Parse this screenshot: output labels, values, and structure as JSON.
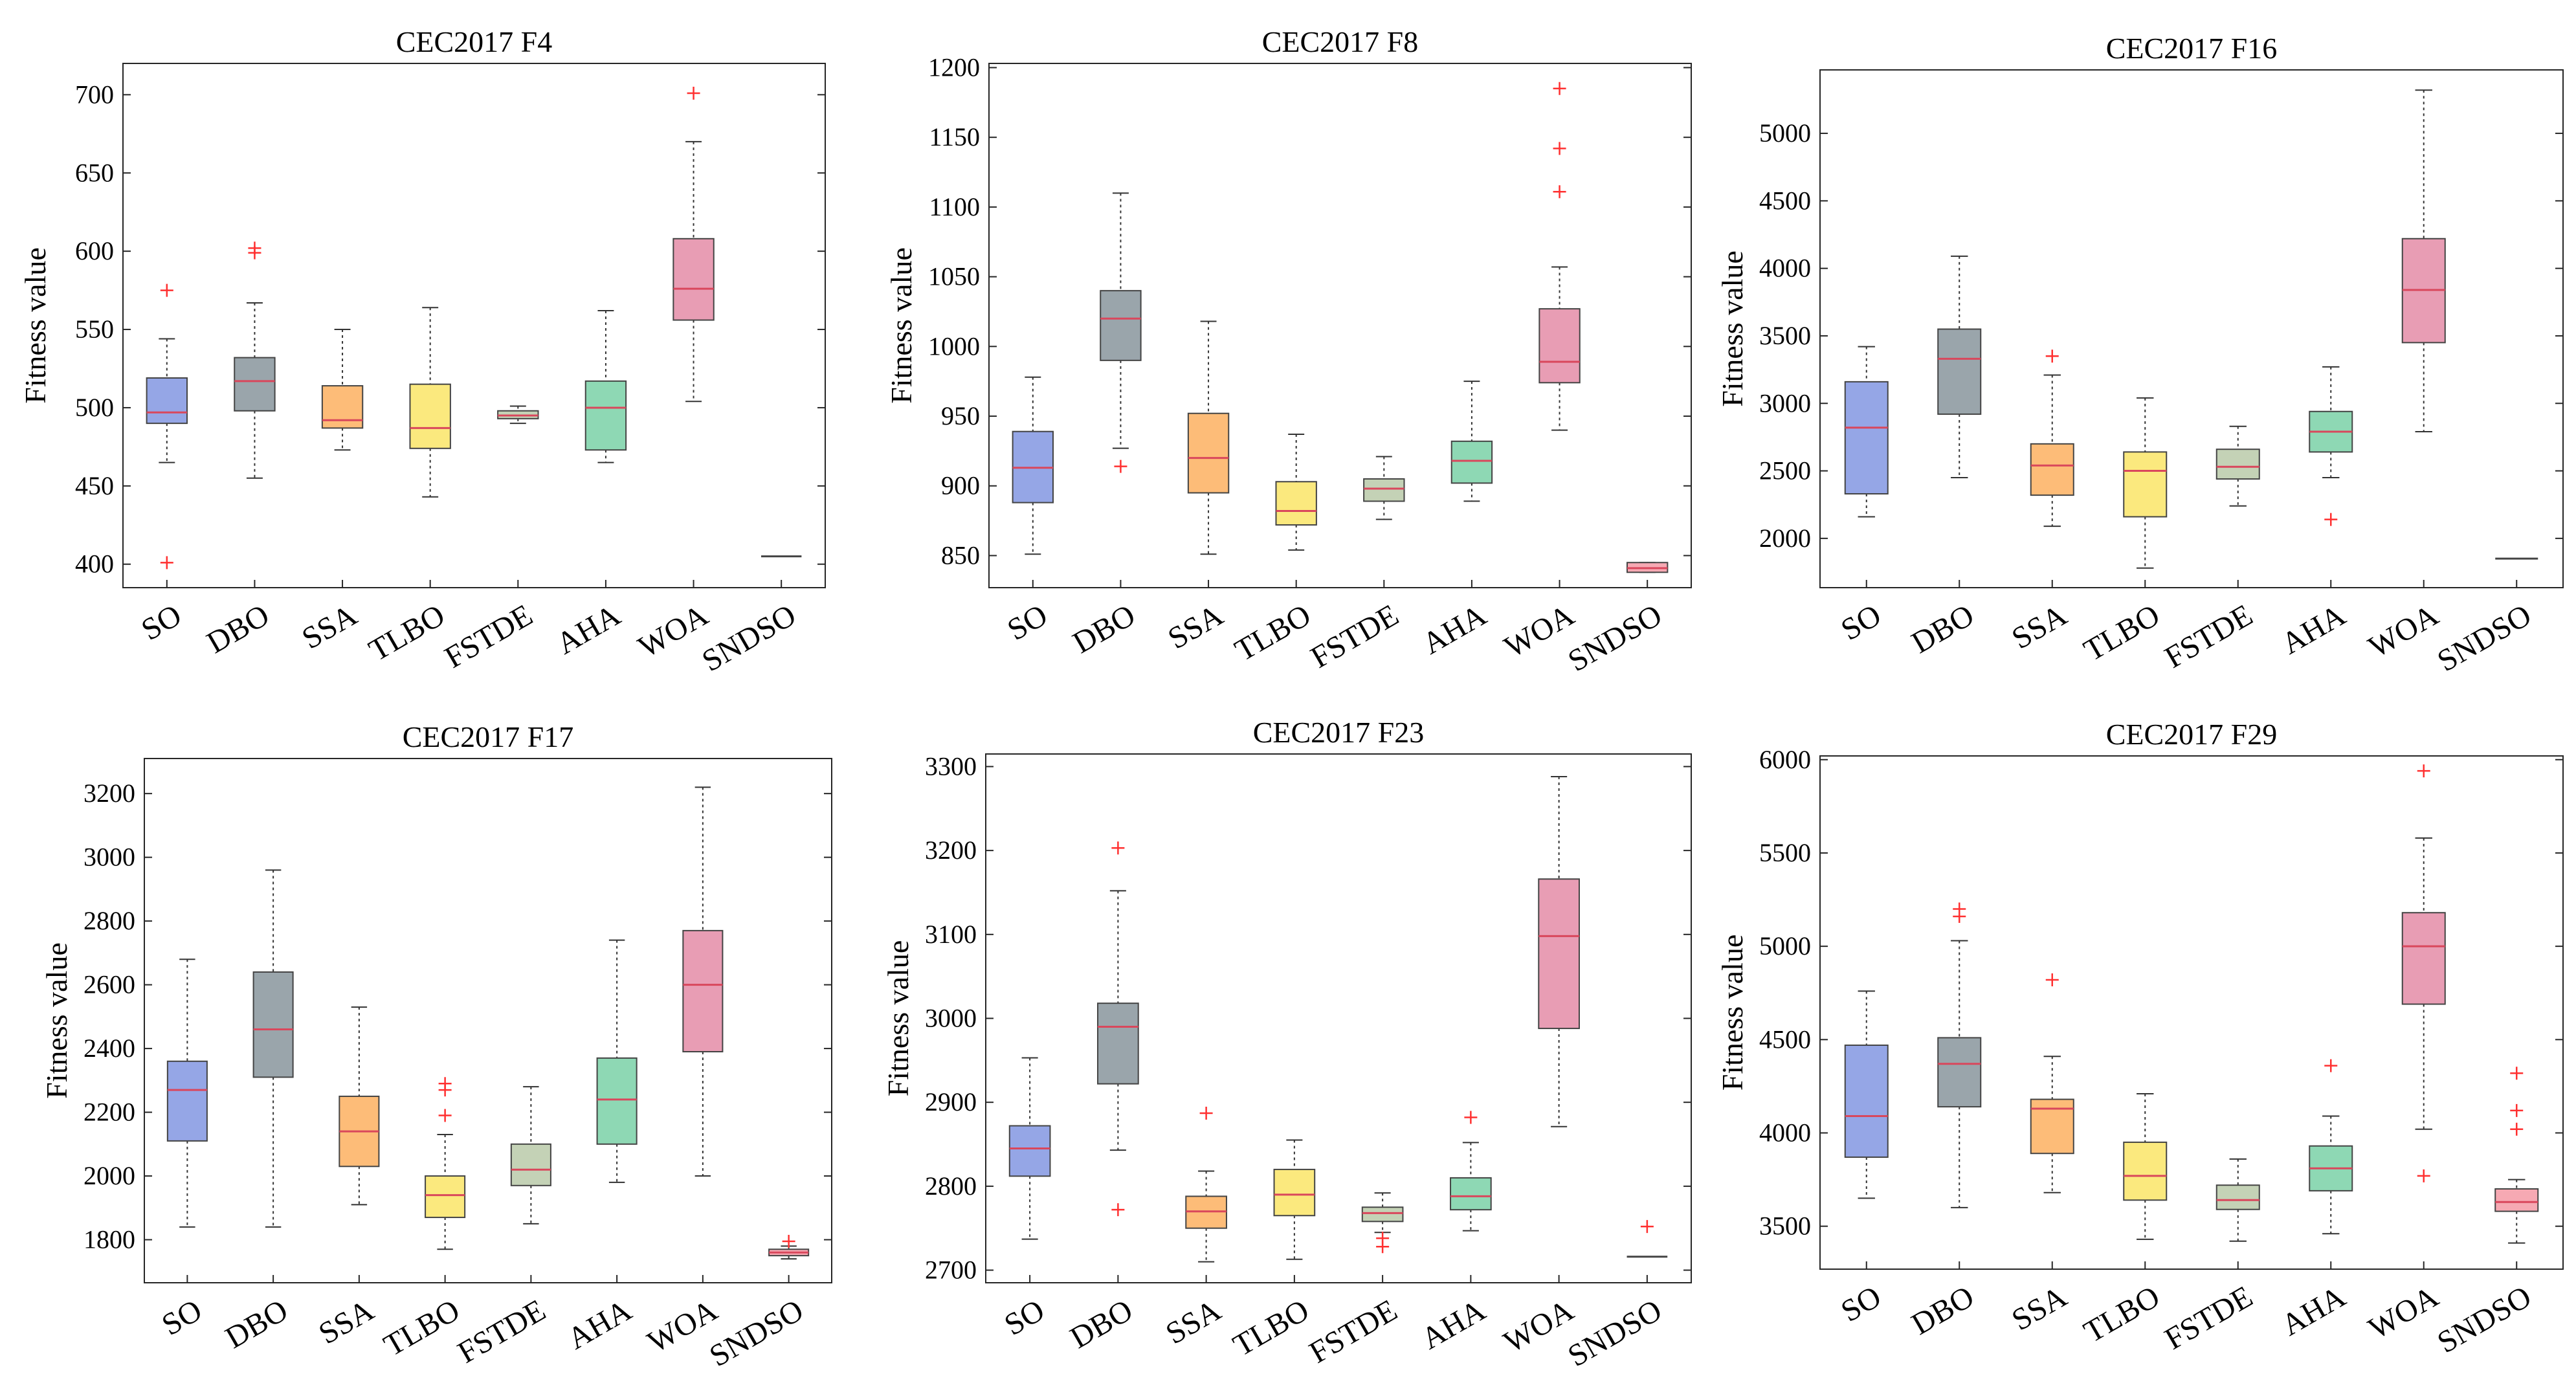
{
  "colors": {
    "SO": "#95a6e6",
    "DBO": "#9aa5ab",
    "SSA": "#fdbc78",
    "TLBO": "#fbe97e",
    "FSTDE": "#c4d2b6",
    "AHA": "#8ed8b4",
    "WOA": "#e89db4",
    "SNDSO": "#f6a9b3",
    "median": "#d9475c",
    "outlier": "#ff3030"
  },
  "chart_data": [
    {
      "type": "box",
      "title": "CEC2017 F4",
      "ylabel": "Fitness value",
      "ylim": [
        385,
        720
      ],
      "yticks": [
        400,
        450,
        500,
        550,
        600,
        650,
        700
      ],
      "categories": [
        "SO",
        "DBO",
        "SSA",
        "TLBO",
        "FSTDE",
        "AHA",
        "WOA",
        "SNDSO"
      ],
      "boxes": [
        {
          "min": 465,
          "q1": 490,
          "median": 497,
          "q3": 519,
          "max": 544,
          "outliers": [
            575,
            401
          ]
        },
        {
          "min": 455,
          "q1": 498,
          "median": 517,
          "q3": 532,
          "max": 567,
          "outliers": [
            599,
            602
          ]
        },
        {
          "min": 473,
          "q1": 487,
          "median": 492,
          "q3": 514,
          "max": 550,
          "outliers": []
        },
        {
          "min": 443,
          "q1": 474,
          "median": 487,
          "q3": 515,
          "max": 564,
          "outliers": []
        },
        {
          "min": 490,
          "q1": 493,
          "median": 495,
          "q3": 498,
          "max": 501,
          "outliers": []
        },
        {
          "min": 465,
          "q1": 473,
          "median": 500,
          "q3": 517,
          "max": 562,
          "outliers": []
        },
        {
          "min": 504,
          "q1": 556,
          "median": 576,
          "q3": 608,
          "max": 670,
          "outliers": [
            701
          ]
        },
        {
          "min": 405,
          "q1": 405,
          "median": 405,
          "q3": 405,
          "max": 405,
          "outliers": []
        }
      ]
    },
    {
      "type": "box",
      "title": "CEC2017 F8",
      "ylabel": "Fitness value",
      "ylim": [
        827,
        1203
      ],
      "yticks": [
        850,
        900,
        950,
        1000,
        1050,
        1100,
        1150,
        1200
      ],
      "categories": [
        "SO",
        "DBO",
        "SSA",
        "TLBO",
        "FSTDE",
        "AHA",
        "WOA",
        "SNDSO"
      ],
      "boxes": [
        {
          "min": 851,
          "q1": 888,
          "median": 913,
          "q3": 939,
          "max": 978,
          "outliers": []
        },
        {
          "min": 927,
          "q1": 990,
          "median": 1020,
          "q3": 1040,
          "max": 1110,
          "outliers": [
            914
          ]
        },
        {
          "min": 851,
          "q1": 895,
          "median": 920,
          "q3": 952,
          "max": 1018,
          "outliers": []
        },
        {
          "min": 854,
          "q1": 872,
          "median": 882,
          "q3": 903,
          "max": 937,
          "outliers": []
        },
        {
          "min": 876,
          "q1": 889,
          "median": 898,
          "q3": 905,
          "max": 921,
          "outliers": []
        },
        {
          "min": 889,
          "q1": 902,
          "median": 918,
          "q3": 932,
          "max": 975,
          "outliers": []
        },
        {
          "min": 940,
          "q1": 974,
          "median": 989,
          "q3": 1027,
          "max": 1057,
          "outliers": [
            1185,
            1142,
            1111
          ]
        },
        {
          "min": 838,
          "q1": 838,
          "median": 841,
          "q3": 845,
          "max": 845,
          "outliers": []
        }
      ]
    },
    {
      "type": "box",
      "title": "CEC2017 F16",
      "ylabel": "Fitness value",
      "ylim": [
        1635,
        5470
      ],
      "yticks": [
        2000,
        2500,
        3000,
        3500,
        4000,
        4500,
        5000
      ],
      "categories": [
        "SO",
        "DBO",
        "SSA",
        "TLBO",
        "FSTDE",
        "AHA",
        "WOA",
        "SNDSO"
      ],
      "boxes": [
        {
          "min": 2160,
          "q1": 2330,
          "median": 2820,
          "q3": 3160,
          "max": 3420,
          "outliers": []
        },
        {
          "min": 2450,
          "q1": 2920,
          "median": 3330,
          "q3": 3550,
          "max": 4090,
          "outliers": []
        },
        {
          "min": 2090,
          "q1": 2320,
          "median": 2540,
          "q3": 2700,
          "max": 3210,
          "outliers": [
            3350
          ]
        },
        {
          "min": 1780,
          "q1": 2160,
          "median": 2500,
          "q3": 2640,
          "max": 3040,
          "outliers": []
        },
        {
          "min": 2240,
          "q1": 2440,
          "median": 2530,
          "q3": 2660,
          "max": 2830,
          "outliers": []
        },
        {
          "min": 2450,
          "q1": 2640,
          "median": 2790,
          "q3": 2940,
          "max": 3270,
          "outliers": [
            2140
          ]
        },
        {
          "min": 2790,
          "q1": 3450,
          "median": 3840,
          "q3": 4220,
          "max": 5320,
          "outliers": []
        },
        {
          "min": 1850,
          "q1": 1850,
          "median": 1850,
          "q3": 1850,
          "max": 1850,
          "outliers": []
        }
      ]
    },
    {
      "type": "box",
      "title": "CEC2017 F17",
      "ylabel": "Fitness value",
      "ylim": [
        1665,
        3310
      ],
      "yticks": [
        1800,
        2000,
        2200,
        2400,
        2600,
        2800,
        3000,
        3200
      ],
      "categories": [
        "SO",
        "DBO",
        "SSA",
        "TLBO",
        "FSTDE",
        "AHA",
        "WOA",
        "SNDSO"
      ],
      "boxes": [
        {
          "min": 1840,
          "q1": 2110,
          "median": 2270,
          "q3": 2360,
          "max": 2680,
          "outliers": []
        },
        {
          "min": 1840,
          "q1": 2310,
          "median": 2460,
          "q3": 2640,
          "max": 2960,
          "outliers": []
        },
        {
          "min": 1910,
          "q1": 2030,
          "median": 2140,
          "q3": 2250,
          "max": 2530,
          "outliers": []
        },
        {
          "min": 1770,
          "q1": 1870,
          "median": 1940,
          "q3": 2000,
          "max": 2130,
          "outliers": [
            2190,
            2270,
            2290
          ]
        },
        {
          "min": 1850,
          "q1": 1970,
          "median": 2020,
          "q3": 2100,
          "max": 2280,
          "outliers": []
        },
        {
          "min": 1980,
          "q1": 2100,
          "median": 2240,
          "q3": 2370,
          "max": 2740,
          "outliers": []
        },
        {
          "min": 2000,
          "q1": 2390,
          "median": 2600,
          "q3": 2770,
          "max": 3220,
          "outliers": []
        },
        {
          "min": 1740,
          "q1": 1750,
          "median": 1760,
          "q3": 1770,
          "max": 1780,
          "outliers": [
            1795
          ]
        }
      ]
    },
    {
      "type": "box",
      "title": "CEC2017 F23",
      "ylabel": "Fitness value",
      "ylim": [
        2685,
        3315
      ],
      "yticks": [
        2700,
        2800,
        2900,
        3000,
        3100,
        3200,
        3300
      ],
      "categories": [
        "SO",
        "DBO",
        "SSA",
        "TLBO",
        "FSTDE",
        "AHA",
        "WOA",
        "SNDSO"
      ],
      "boxes": [
        {
          "min": 2737,
          "q1": 2812,
          "median": 2845,
          "q3": 2872,
          "max": 2953,
          "outliers": []
        },
        {
          "min": 2843,
          "q1": 2922,
          "median": 2990,
          "q3": 3018,
          "max": 3152,
          "outliers": [
            3203,
            2772
          ]
        },
        {
          "min": 2710,
          "q1": 2750,
          "median": 2770,
          "q3": 2788,
          "max": 2818,
          "outliers": [
            2887
          ]
        },
        {
          "min": 2713,
          "q1": 2765,
          "median": 2790,
          "q3": 2820,
          "max": 2855,
          "outliers": []
        },
        {
          "min": 2745,
          "q1": 2758,
          "median": 2768,
          "q3": 2775,
          "max": 2792,
          "outliers": [
            2738,
            2728
          ]
        },
        {
          "min": 2747,
          "q1": 2772,
          "median": 2788,
          "q3": 2810,
          "max": 2852,
          "outliers": [
            2882
          ]
        },
        {
          "min": 2871,
          "q1": 2988,
          "median": 3098,
          "q3": 3166,
          "max": 3288,
          "outliers": []
        },
        {
          "min": 2716,
          "q1": 2716,
          "median": 2716,
          "q3": 2716,
          "max": 2716,
          "outliers": [
            2752
          ]
        }
      ]
    },
    {
      "type": "box",
      "title": "CEC2017 F29",
      "ylabel": "Fitness value",
      "ylim": [
        3270,
        6020
      ],
      "yticks": [
        3500,
        4000,
        4500,
        5000,
        5500,
        6000
      ],
      "categories": [
        "SO",
        "DBO",
        "SSA",
        "TLBO",
        "FSTDE",
        "AHA",
        "WOA",
        "SNDSO"
      ],
      "boxes": [
        {
          "min": 3650,
          "q1": 3870,
          "median": 4090,
          "q3": 4470,
          "max": 4760,
          "outliers": []
        },
        {
          "min": 3600,
          "q1": 4140,
          "median": 4370,
          "q3": 4510,
          "max": 5030,
          "outliers": [
            5160,
            5200
          ]
        },
        {
          "min": 3680,
          "q1": 3890,
          "median": 4130,
          "q3": 4180,
          "max": 4410,
          "outliers": [
            4820
          ]
        },
        {
          "min": 3430,
          "q1": 3640,
          "median": 3770,
          "q3": 3950,
          "max": 4210,
          "outliers": []
        },
        {
          "min": 3420,
          "q1": 3590,
          "median": 3640,
          "q3": 3720,
          "max": 3860,
          "outliers": []
        },
        {
          "min": 3460,
          "q1": 3690,
          "median": 3810,
          "q3": 3930,
          "max": 4090,
          "outliers": [
            4360
          ]
        },
        {
          "min": 4020,
          "q1": 4690,
          "median": 5000,
          "q3": 5180,
          "max": 5580,
          "outliers": [
            5940,
            3770
          ]
        },
        {
          "min": 3410,
          "q1": 3580,
          "median": 3630,
          "q3": 3700,
          "max": 3750,
          "outliers": [
            4320,
            4120,
            4020
          ]
        }
      ]
    }
  ]
}
